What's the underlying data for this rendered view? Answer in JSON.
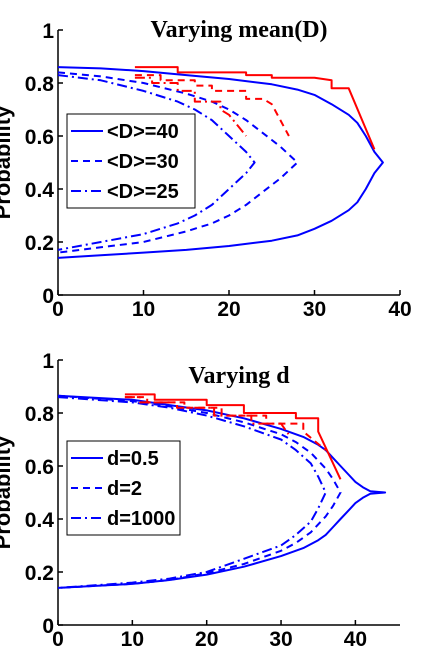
{
  "colors": {
    "blue": "#0000ff",
    "red": "#ff0000",
    "axis": "#000000",
    "background": "#ffffff"
  },
  "chart_data": [
    {
      "type": "line",
      "title": "Varying mean(D)",
      "xlabel": "",
      "ylabel": "Probability",
      "xlim": [
        0,
        40
      ],
      "ylim": [
        0,
        1
      ],
      "xticks": [
        "0",
        "10",
        "20",
        "30",
        "40"
      ],
      "yticks": [
        "0",
        "0.2",
        "0.4",
        "0.6",
        "0.8",
        "1"
      ],
      "grid": false,
      "legend_position": "middle-left",
      "series": [
        {
          "name": "<D>=40",
          "style": "solid",
          "color": "#0000ff",
          "x": [
            0,
            5,
            10,
            15,
            20,
            25,
            28,
            30,
            32,
            34,
            35,
            36,
            37,
            38,
            37,
            36,
            35,
            34,
            32,
            30,
            28,
            25,
            20,
            15,
            10,
            5,
            0
          ],
          "y": [
            0.86,
            0.855,
            0.845,
            0.83,
            0.815,
            0.795,
            0.775,
            0.755,
            0.72,
            0.68,
            0.65,
            0.6,
            0.54,
            0.5,
            0.46,
            0.4,
            0.35,
            0.32,
            0.28,
            0.25,
            0.225,
            0.205,
            0.185,
            0.17,
            0.16,
            0.15,
            0.14
          ]
        },
        {
          "name": "<D>=30",
          "style": "dashed",
          "color": "#0000ff",
          "x": [
            0,
            5,
            10,
            15,
            18,
            20,
            22,
            24,
            26,
            28,
            26,
            24,
            22,
            20,
            18,
            15,
            10,
            5,
            0
          ],
          "y": [
            0.84,
            0.825,
            0.8,
            0.76,
            0.73,
            0.7,
            0.66,
            0.61,
            0.56,
            0.5,
            0.44,
            0.39,
            0.34,
            0.3,
            0.27,
            0.24,
            0.2,
            0.18,
            0.16
          ]
        },
        {
          "name": "<D>=25",
          "style": "dashdot",
          "color": "#0000ff",
          "x": [
            0,
            5,
            10,
            14,
            16,
            18,
            20,
            22,
            23,
            22,
            20,
            18,
            16,
            14,
            10,
            5,
            0
          ],
          "y": [
            0.83,
            0.81,
            0.77,
            0.73,
            0.7,
            0.66,
            0.6,
            0.54,
            0.5,
            0.46,
            0.4,
            0.34,
            0.3,
            0.27,
            0.23,
            0.2,
            0.17
          ]
        }
      ],
      "red_series": [
        {
          "style": "solid",
          "color": "#ff0000",
          "x": [
            9,
            14,
            14,
            22,
            22,
            25,
            25,
            30,
            32,
            32,
            34,
            37
          ],
          "y": [
            0.86,
            0.86,
            0.84,
            0.84,
            0.83,
            0.83,
            0.82,
            0.82,
            0.81,
            0.78,
            0.78,
            0.55
          ]
        },
        {
          "style": "dashed",
          "color": "#ff0000",
          "x": [
            9,
            12,
            12,
            16,
            16,
            18,
            18,
            22,
            22,
            24,
            25,
            27
          ],
          "y": [
            0.83,
            0.83,
            0.81,
            0.81,
            0.79,
            0.79,
            0.77,
            0.77,
            0.74,
            0.74,
            0.72,
            0.6
          ]
        },
        {
          "style": "dashdot",
          "color": "#ff0000",
          "x": [
            9,
            11,
            11,
            14,
            14,
            16,
            16,
            19,
            19,
            20,
            22
          ],
          "y": [
            0.82,
            0.82,
            0.8,
            0.8,
            0.77,
            0.77,
            0.73,
            0.73,
            0.7,
            0.68,
            0.6
          ]
        }
      ]
    },
    {
      "type": "line",
      "title": "Varying d",
      "xlabel": "",
      "ylabel": "Probability",
      "xlim": [
        0,
        46
      ],
      "ylim": [
        0,
        1
      ],
      "xticks": [
        "0",
        "10",
        "20",
        "30",
        "40"
      ],
      "yticks": [
        "0",
        "0.2",
        "0.4",
        "0.6",
        "0.8",
        "1"
      ],
      "grid": false,
      "legend_position": "middle-left",
      "series": [
        {
          "name": "d=0.5",
          "style": "solid",
          "color": "#0000ff",
          "x": [
            0,
            10,
            15,
            20,
            25,
            30,
            33,
            35,
            36,
            37,
            38,
            39,
            40,
            41,
            42,
            44,
            42,
            41,
            40,
            39,
            38,
            37,
            36,
            35,
            33,
            30,
            25,
            20,
            15,
            10,
            0
          ],
          "y": [
            0.865,
            0.85,
            0.83,
            0.81,
            0.78,
            0.74,
            0.71,
            0.68,
            0.66,
            0.63,
            0.6,
            0.57,
            0.54,
            0.52,
            0.505,
            0.5,
            0.495,
            0.48,
            0.46,
            0.43,
            0.4,
            0.37,
            0.34,
            0.32,
            0.29,
            0.26,
            0.22,
            0.19,
            0.17,
            0.155,
            0.14
          ]
        },
        {
          "name": "d=2",
          "style": "dashed",
          "color": "#0000ff",
          "x": [
            0,
            10,
            15,
            20,
            25,
            30,
            32,
            34,
            36,
            37,
            38,
            37,
            36,
            34,
            32,
            30,
            25,
            20,
            15,
            10,
            0
          ],
          "y": [
            0.865,
            0.845,
            0.825,
            0.8,
            0.765,
            0.72,
            0.69,
            0.65,
            0.59,
            0.55,
            0.5,
            0.45,
            0.41,
            0.35,
            0.31,
            0.28,
            0.23,
            0.195,
            0.17,
            0.155,
            0.14
          ]
        },
        {
          "name": "d=1000",
          "style": "dashdot",
          "color": "#0000ff",
          "x": [
            0,
            10,
            15,
            20,
            25,
            30,
            32,
            34,
            35,
            36,
            35,
            34,
            32,
            30,
            25,
            20,
            15,
            10,
            0
          ],
          "y": [
            0.86,
            0.84,
            0.82,
            0.79,
            0.75,
            0.7,
            0.66,
            0.61,
            0.56,
            0.5,
            0.44,
            0.39,
            0.34,
            0.3,
            0.25,
            0.2,
            0.175,
            0.16,
            0.14
          ]
        }
      ],
      "red_series": [
        {
          "style": "solid",
          "color": "#ff0000",
          "x": [
            9,
            13,
            13,
            20,
            20,
            25,
            25,
            32,
            32,
            35,
            35,
            38
          ],
          "y": [
            0.87,
            0.87,
            0.85,
            0.85,
            0.83,
            0.83,
            0.8,
            0.8,
            0.78,
            0.78,
            0.73,
            0.55
          ]
        },
        {
          "style": "dashed",
          "color": "#ff0000",
          "x": [
            9,
            12,
            12,
            17,
            17,
            22,
            22,
            28,
            28,
            33,
            33,
            36
          ],
          "y": [
            0.86,
            0.86,
            0.84,
            0.84,
            0.82,
            0.82,
            0.79,
            0.79,
            0.76,
            0.76,
            0.73,
            0.66
          ]
        },
        {
          "style": "dashdot",
          "color": "#ff0000",
          "x": [
            9,
            11,
            11,
            16,
            16,
            21,
            21,
            26,
            26,
            30,
            31
          ],
          "y": [
            0.86,
            0.86,
            0.84,
            0.84,
            0.82,
            0.82,
            0.79,
            0.79,
            0.76,
            0.76,
            0.72
          ]
        }
      ]
    }
  ]
}
